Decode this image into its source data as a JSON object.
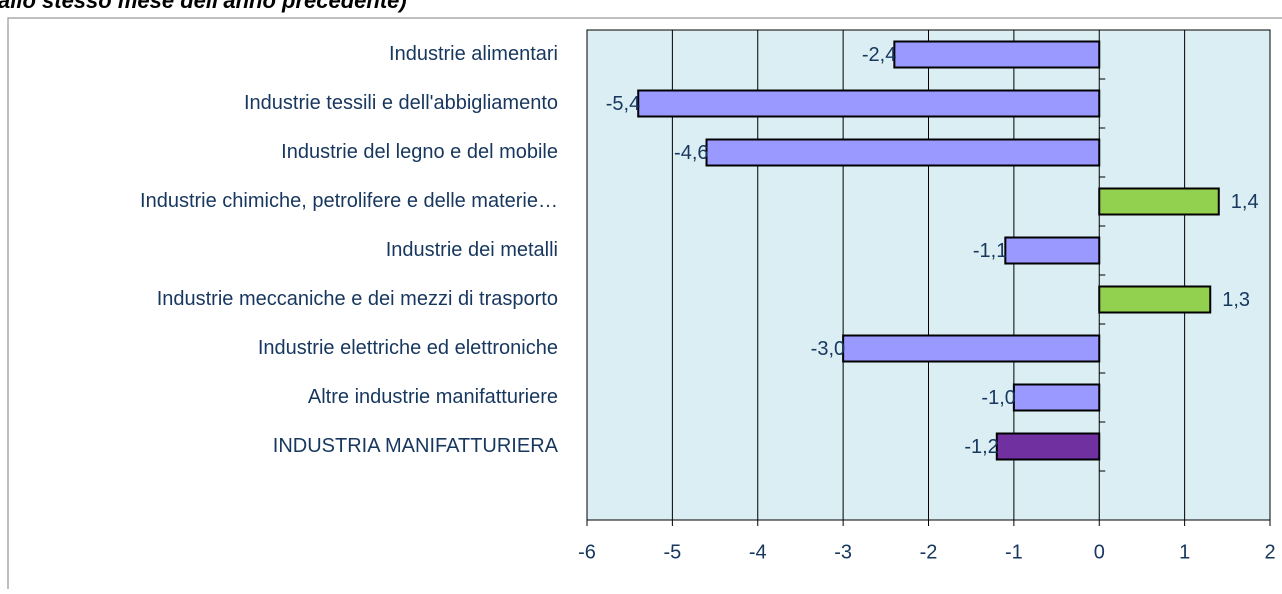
{
  "chart_data": {
    "type": "bar",
    "orientation": "horizontal",
    "title": "allo stesso mese dell'anno precedente)",
    "categories": [
      "Industrie alimentari",
      "Industrie tessili e dell'abbigliamento",
      "Industrie del legno e del mobile",
      "Industrie chimiche, petrolifere e delle materie…",
      "Industrie dei metalli",
      "Industrie meccaniche e dei mezzi di trasporto",
      "Industrie elettriche ed elettroniche",
      "Altre industrie manifatturiere",
      "INDUSTRIA MANIFATTURIERA"
    ],
    "values": [
      -2.4,
      -5.4,
      -4.6,
      1.4,
      -1.1,
      1.3,
      -3.0,
      -1.0,
      -1.2
    ],
    "value_labels": [
      "-2,4",
      "-5,4",
      "-4,6",
      "1,4",
      "-1,1",
      "1,3",
      "-3,0",
      "-1,0",
      "-1,2"
    ],
    "colors": [
      "#9999ff",
      "#9999ff",
      "#9999ff",
      "#92d050",
      "#9999ff",
      "#92d050",
      "#9999ff",
      "#9999ff",
      "#7030a0"
    ],
    "xlim": [
      -6,
      2
    ],
    "xticks": [
      -6,
      -5,
      -4,
      -3,
      -2,
      -1,
      0,
      1,
      2
    ],
    "grid": true
  }
}
